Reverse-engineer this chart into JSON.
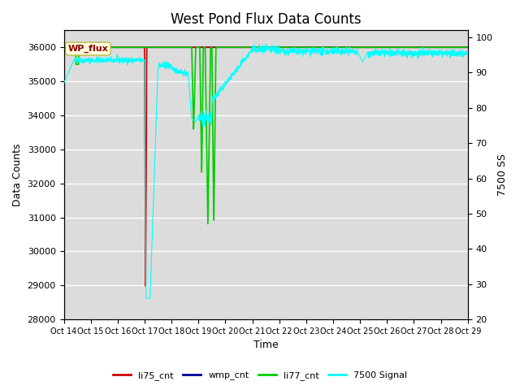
{
  "title": "West Pond Flux Data Counts",
  "xlabel": "Time",
  "ylabel_left": "Data Counts",
  "ylabel_right": "7500 SS",
  "annotation_text": "WP_flux",
  "ylim_left": [
    28000,
    36500
  ],
  "ylim_right": [
    20,
    102
  ],
  "background_color": "#e0e0e0",
  "x_tick_labels": [
    "Oct 14",
    "Oct 15",
    "Oct 16",
    "Oct 17",
    "Oct 18",
    "Oct 19",
    "Oct 20",
    "Oct 21",
    "Oct 22",
    "Oct 23",
    "Oct 24",
    "Oct 25",
    "Oct 26",
    "Oct 27",
    "Oct 28",
    "Oct 29"
  ],
  "legend_entries": [
    "li75_cnt",
    "wmp_cnt",
    "li77_cnt",
    "7500 Signal"
  ],
  "legend_colors": [
    "#cc0000",
    "#000099",
    "#00cc00",
    "#00cccc"
  ],
  "title_fontsize": 12
}
